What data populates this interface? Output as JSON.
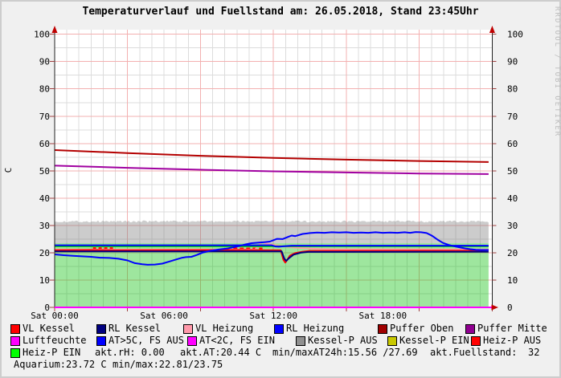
{
  "title": "Temperaturverlauf und Fuellstand am: 26.05.2018, Stand 23:45Uhr",
  "watermark": "RRDTOOL / TOBI OETIKER",
  "colors": {
    "background": "#f0f0f0",
    "canvas": "#ffffff",
    "grid_minor": "#dcdcdc",
    "grid_major": "#f3b0b0",
    "axis": "#222222",
    "arrow": "#c00000",
    "tick": "#a04040",
    "text": "#000000",
    "watermark": "#bcbcbc"
  },
  "chart_data": {
    "type": "line",
    "title": "Temperaturverlauf und Fuellstand am: 26.05.2018, Stand 23:45Uhr",
    "ylabel": "C",
    "ylim": [
      0,
      100
    ],
    "xlim_hours": [
      0,
      24
    ],
    "data_end_hour": 23.8,
    "y_ticks": [
      0,
      10,
      20,
      30,
      40,
      50,
      60,
      70,
      80,
      90,
      100
    ],
    "x_ticks": [
      {
        "t": 0,
        "label": "Sat 00:00"
      },
      {
        "t": 6,
        "label": "Sat 06:00"
      },
      {
        "t": 12,
        "label": "Sat 12:00"
      },
      {
        "t": 18,
        "label": "Sat 18:00"
      }
    ],
    "grid": {
      "minor_x_hours": 0.6667,
      "major_x_hours": 4,
      "minor_y": 5,
      "major_y": 10
    },
    "areas": [
      {
        "name": "heiz-p-ein-area",
        "color": "rgba(0,190,0,0.38)",
        "from": 0,
        "to": 23.5,
        "noise": 0
      },
      {
        "name": "kessel-p-aus-band",
        "color": "rgba(120,120,120,0.38)",
        "from": 23.5,
        "to": 31.1,
        "noise": 0.7
      }
    ],
    "series": [
      {
        "name": "puffer-oben",
        "color": "#b40000",
        "width": 2,
        "points": [
          [
            0,
            57.6
          ],
          [
            4,
            56.5
          ],
          [
            8,
            55.5
          ],
          [
            12,
            54.7
          ],
          [
            16,
            54.1
          ],
          [
            20,
            53.6
          ],
          [
            23.8,
            53.2
          ]
        ]
      },
      {
        "name": "puffer-mitte",
        "color": "#a000a0",
        "width": 2,
        "points": [
          [
            0,
            51.9
          ],
          [
            4,
            51.1
          ],
          [
            8,
            50.4
          ],
          [
            12,
            49.8
          ],
          [
            16,
            49.4
          ],
          [
            20,
            49.0
          ],
          [
            23.8,
            48.8
          ]
        ]
      },
      {
        "name": "luftfeuchte",
        "color": "#ff00ff",
        "width": 2,
        "points": [
          [
            0,
            0
          ],
          [
            24,
            0
          ]
        ]
      },
      {
        "name": "heiz-p-aus-marks",
        "color": "#ff0000",
        "width": 2,
        "dash": "4,3",
        "points": [
          [
            2.1,
            21.7
          ],
          [
            3.3,
            21.7
          ]
        ]
      },
      {
        "name": "heiz-p-aus-marks2",
        "color": "#ff0000",
        "width": 2,
        "dash": "5,3",
        "points": [
          [
            9.8,
            21.6
          ],
          [
            11.4,
            21.6
          ]
        ]
      },
      {
        "name": "vl-heizung",
        "color": "#ff99aa",
        "width": 2,
        "points": [
          [
            0,
            21.15
          ],
          [
            11.0,
            21.15
          ],
          [
            11.15,
            22.5
          ],
          [
            11.35,
            23.9
          ],
          [
            11.6,
            23.4
          ],
          [
            12.0,
            22.9
          ],
          [
            12.5,
            22.4
          ],
          [
            13.0,
            22.0
          ],
          [
            13.6,
            21.7
          ],
          [
            14.5,
            21.4
          ],
          [
            15.5,
            21.25
          ],
          [
            23.8,
            21.2
          ]
        ]
      },
      {
        "name": "vl-kessel",
        "color": "#ff0000",
        "width": 2,
        "points": [
          [
            0,
            20.95
          ],
          [
            2.0,
            21.0
          ],
          [
            3.4,
            20.9
          ],
          [
            9.7,
            21.0
          ],
          [
            11.5,
            20.95
          ],
          [
            12.4,
            20.9
          ],
          [
            12.55,
            17.4
          ],
          [
            12.65,
            16.4
          ],
          [
            12.75,
            17.3
          ],
          [
            12.9,
            18.9
          ],
          [
            13.2,
            19.9
          ],
          [
            13.6,
            20.4
          ],
          [
            14.0,
            20.7
          ],
          [
            23.3,
            20.8
          ],
          [
            23.8,
            21.05
          ]
        ]
      },
      {
        "name": "rl-kessel",
        "color": "#000080",
        "width": 2,
        "points": [
          [
            0,
            20.5
          ],
          [
            12.45,
            20.5
          ],
          [
            12.6,
            17.8
          ],
          [
            12.7,
            17.0
          ],
          [
            12.85,
            18.0
          ],
          [
            13.1,
            19.3
          ],
          [
            13.5,
            20.0
          ],
          [
            13.9,
            20.3
          ],
          [
            23.8,
            20.4
          ]
        ]
      },
      {
        "name": "heiz-p-ein-line",
        "color": "#00cc00",
        "width": 2,
        "points": [
          [
            0,
            22.35
          ],
          [
            23.8,
            22.35
          ]
        ]
      },
      {
        "name": "rl-heizung",
        "color": "#0000ff",
        "width": 2,
        "points": [
          [
            0,
            22.75
          ],
          [
            11.9,
            22.75
          ],
          [
            12.1,
            22.3
          ],
          [
            12.3,
            22.2
          ],
          [
            12.6,
            22.4
          ],
          [
            13.0,
            22.6
          ],
          [
            23.8,
            22.6
          ]
        ]
      },
      {
        "name": "aussentemperatur",
        "color": "#0000ff",
        "width": 2,
        "points": [
          [
            0,
            19.4
          ],
          [
            0.5,
            19.1
          ],
          [
            1,
            18.9
          ],
          [
            1.5,
            18.7
          ],
          [
            2,
            18.5
          ],
          [
            2.5,
            18.2
          ],
          [
            3,
            18.1
          ],
          [
            3.5,
            17.8
          ],
          [
            4,
            17.2
          ],
          [
            4.4,
            16.2
          ],
          [
            4.8,
            15.8
          ],
          [
            5.1,
            15.6
          ],
          [
            5.5,
            15.7
          ],
          [
            5.9,
            16.0
          ],
          [
            6.3,
            16.8
          ],
          [
            6.7,
            17.6
          ],
          [
            7.0,
            18.2
          ],
          [
            7.2,
            18.4
          ],
          [
            7.5,
            18.5
          ],
          [
            7.8,
            19.2
          ],
          [
            8.1,
            20.0
          ],
          [
            8.5,
            20.7
          ],
          [
            9,
            21.2
          ],
          [
            9.5,
            21.6
          ],
          [
            10,
            22.3
          ],
          [
            10.5,
            23.1
          ],
          [
            10.8,
            23.5
          ],
          [
            11.2,
            23.7
          ],
          [
            11.5,
            23.9
          ],
          [
            11.8,
            24.1
          ],
          [
            12.0,
            24.6
          ],
          [
            12.2,
            25.1
          ],
          [
            12.5,
            25.0
          ],
          [
            12.8,
            25.8
          ],
          [
            13.0,
            26.3
          ],
          [
            13.2,
            26.1
          ],
          [
            13.6,
            26.9
          ],
          [
            14.0,
            27.2
          ],
          [
            14.4,
            27.4
          ],
          [
            14.8,
            27.3
          ],
          [
            15.2,
            27.5
          ],
          [
            15.6,
            27.4
          ],
          [
            16.0,
            27.5
          ],
          [
            16.4,
            27.3
          ],
          [
            16.8,
            27.4
          ],
          [
            17.2,
            27.3
          ],
          [
            17.6,
            27.5
          ],
          [
            18.0,
            27.3
          ],
          [
            18.4,
            27.4
          ],
          [
            18.8,
            27.3
          ],
          [
            19.2,
            27.5
          ],
          [
            19.5,
            27.3
          ],
          [
            19.8,
            27.6
          ],
          [
            20.1,
            27.5
          ],
          [
            20.4,
            27.2
          ],
          [
            20.7,
            26.2
          ],
          [
            21.0,
            24.8
          ],
          [
            21.3,
            23.6
          ],
          [
            21.6,
            22.9
          ],
          [
            21.9,
            22.4
          ],
          [
            22.2,
            22.0
          ],
          [
            22.5,
            21.6
          ],
          [
            22.8,
            21.3
          ],
          [
            23.1,
            21.1
          ],
          [
            23.4,
            21.0
          ],
          [
            23.8,
            21.0
          ]
        ]
      }
    ],
    "stats": {
      "akt_rH": "0.00",
      "akt_AT": "20.44",
      "minmax_AT24h": "15.56 /27.69",
      "akt_Fuellstand": "32",
      "aquarium": "23.72",
      "aquarium_minmax": "22.81/23.75"
    }
  },
  "legend": {
    "rows": [
      [
        {
          "swatch": "#ff0000",
          "label": "VL Kessel"
        },
        {
          "swatch": "#000080",
          "label": "RL Kessel"
        },
        {
          "swatch": "#ff99aa",
          "label": "VL Heizung"
        },
        {
          "swatch": "#0000ff",
          "label": "RL Heizung"
        },
        {
          "swatch": "#a00000",
          "label": "Puffer Oben"
        },
        {
          "swatch": "#900090",
          "label": "Puffer Mitte"
        }
      ],
      [
        {
          "swatch": "#ff00ff",
          "label": "Luftfeuchte"
        },
        {
          "swatch": "#0000ff",
          "label": "AT>5C, FS AUS"
        },
        {
          "swatch": "#ff00ff",
          "label": "AT<2C, FS EIN"
        },
        {
          "swatch": "#909090",
          "label": "Kessel-P AUS"
        },
        {
          "swatch": "#c8c800",
          "label": "Kessel-P EIN"
        },
        {
          "swatch": "#ff0000",
          "label": "Heiz-P AUS"
        }
      ],
      [
        {
          "swatch": "#00ff00",
          "label": "Heiz-P EIN"
        },
        {
          "label": "akt.rH: 0.00"
        },
        {
          "label": "akt.AT:20.44 C"
        },
        {
          "label": "min/maxAT24h:15.56 /27.69"
        },
        {
          "label": "akt.Fuellstand:"
        },
        {
          "label": "32"
        }
      ],
      [
        {
          "label": "Aquarium:23.72 C"
        },
        {
          "label": "min/max:22.81/23.75"
        }
      ]
    ]
  }
}
